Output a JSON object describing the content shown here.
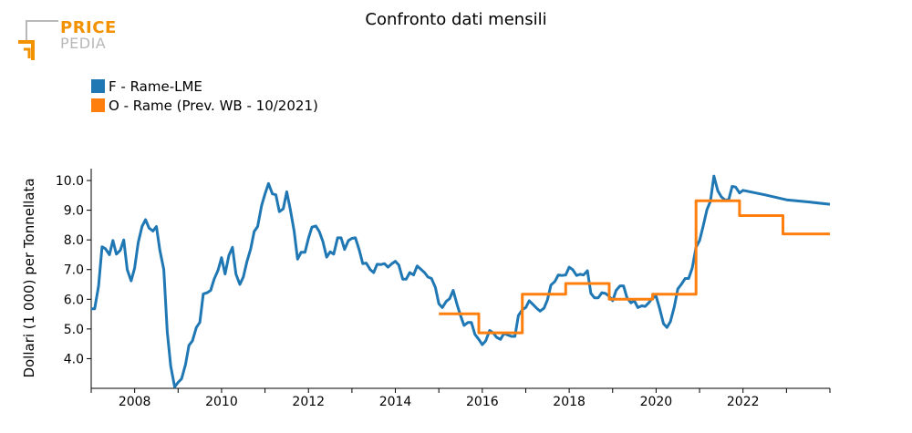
{
  "brand": {
    "price": "PRICE",
    "pedia": "PEDIA"
  },
  "chart_data": {
    "type": "line",
    "title": "Confronto dati mensili",
    "ylabel": "Dollari (1 000) per Tonnellata",
    "xlabel": "",
    "xlim": [
      2007.0,
      2024.0
    ],
    "ylim": [
      3.0,
      10.4
    ],
    "x_ticks": [
      "2008",
      "2010",
      "2012",
      "2014",
      "2016",
      "2018",
      "2020",
      "2022"
    ],
    "y_ticks": [
      "4.0",
      "5.0",
      "6.0",
      "7.0",
      "8.0",
      "9.0",
      "10.0"
    ],
    "legend_position": "top-left",
    "series": [
      {
        "name": "F - Rame-LME",
        "color": "#1f77b4",
        "style": "line",
        "points": [
          [
            2007.0,
            5.68
          ],
          [
            2007.08,
            5.68
          ],
          [
            2007.17,
            6.45
          ],
          [
            2007.25,
            7.77
          ],
          [
            2007.33,
            7.7
          ],
          [
            2007.42,
            7.5
          ],
          [
            2007.5,
            7.98
          ],
          [
            2007.58,
            7.52
          ],
          [
            2007.67,
            7.65
          ],
          [
            2007.75,
            8.0
          ],
          [
            2007.83,
            7.0
          ],
          [
            2007.92,
            6.62
          ],
          [
            2008.0,
            7.05
          ],
          [
            2008.08,
            7.9
          ],
          [
            2008.17,
            8.45
          ],
          [
            2008.25,
            8.68
          ],
          [
            2008.33,
            8.4
          ],
          [
            2008.42,
            8.3
          ],
          [
            2008.5,
            8.45
          ],
          [
            2008.58,
            7.65
          ],
          [
            2008.67,
            7.0
          ],
          [
            2008.75,
            4.9
          ],
          [
            2008.83,
            3.75
          ],
          [
            2008.92,
            3.05
          ],
          [
            2009.0,
            3.2
          ],
          [
            2009.08,
            3.32
          ],
          [
            2009.17,
            3.8
          ],
          [
            2009.25,
            4.45
          ],
          [
            2009.33,
            4.6
          ],
          [
            2009.42,
            5.05
          ],
          [
            2009.5,
            5.22
          ],
          [
            2009.58,
            6.18
          ],
          [
            2009.67,
            6.22
          ],
          [
            2009.75,
            6.3
          ],
          [
            2009.83,
            6.68
          ],
          [
            2009.92,
            6.98
          ],
          [
            2010.0,
            7.4
          ],
          [
            2010.08,
            6.85
          ],
          [
            2010.17,
            7.48
          ],
          [
            2010.25,
            7.75
          ],
          [
            2010.33,
            6.85
          ],
          [
            2010.42,
            6.5
          ],
          [
            2010.5,
            6.75
          ],
          [
            2010.58,
            7.25
          ],
          [
            2010.67,
            7.7
          ],
          [
            2010.75,
            8.28
          ],
          [
            2010.83,
            8.45
          ],
          [
            2010.92,
            9.15
          ],
          [
            2011.0,
            9.55
          ],
          [
            2011.08,
            9.9
          ],
          [
            2011.17,
            9.55
          ],
          [
            2011.25,
            9.52
          ],
          [
            2011.33,
            8.95
          ],
          [
            2011.42,
            9.05
          ],
          [
            2011.5,
            9.62
          ],
          [
            2011.58,
            9.05
          ],
          [
            2011.67,
            8.3
          ],
          [
            2011.75,
            7.35
          ],
          [
            2011.83,
            7.58
          ],
          [
            2011.92,
            7.58
          ],
          [
            2012.0,
            8.05
          ],
          [
            2012.08,
            8.43
          ],
          [
            2012.17,
            8.47
          ],
          [
            2012.25,
            8.28
          ],
          [
            2012.33,
            7.95
          ],
          [
            2012.42,
            7.42
          ],
          [
            2012.5,
            7.6
          ],
          [
            2012.58,
            7.52
          ],
          [
            2012.67,
            8.07
          ],
          [
            2012.75,
            8.07
          ],
          [
            2012.83,
            7.68
          ],
          [
            2012.92,
            7.98
          ],
          [
            2013.0,
            8.05
          ],
          [
            2013.08,
            8.07
          ],
          [
            2013.17,
            7.65
          ],
          [
            2013.25,
            7.2
          ],
          [
            2013.33,
            7.22
          ],
          [
            2013.42,
            7.0
          ],
          [
            2013.5,
            6.9
          ],
          [
            2013.58,
            7.18
          ],
          [
            2013.67,
            7.17
          ],
          [
            2013.75,
            7.2
          ],
          [
            2013.83,
            7.08
          ],
          [
            2013.92,
            7.2
          ],
          [
            2014.0,
            7.28
          ],
          [
            2014.08,
            7.15
          ],
          [
            2014.17,
            6.68
          ],
          [
            2014.25,
            6.68
          ],
          [
            2014.33,
            6.9
          ],
          [
            2014.42,
            6.82
          ],
          [
            2014.5,
            7.12
          ],
          [
            2014.58,
            7.02
          ],
          [
            2014.67,
            6.9
          ],
          [
            2014.75,
            6.75
          ],
          [
            2014.83,
            6.7
          ],
          [
            2014.92,
            6.4
          ],
          [
            2015.0,
            5.85
          ],
          [
            2015.08,
            5.72
          ],
          [
            2015.17,
            5.93
          ],
          [
            2015.25,
            6.02
          ],
          [
            2015.33,
            6.3
          ],
          [
            2015.42,
            5.82
          ],
          [
            2015.5,
            5.45
          ],
          [
            2015.58,
            5.12
          ],
          [
            2015.67,
            5.22
          ],
          [
            2015.75,
            5.22
          ],
          [
            2015.83,
            4.82
          ],
          [
            2015.92,
            4.65
          ],
          [
            2016.0,
            4.47
          ],
          [
            2016.08,
            4.6
          ],
          [
            2016.17,
            4.95
          ],
          [
            2016.25,
            4.87
          ],
          [
            2016.33,
            4.72
          ],
          [
            2016.42,
            4.65
          ],
          [
            2016.5,
            4.85
          ],
          [
            2016.58,
            4.8
          ],
          [
            2016.67,
            4.75
          ],
          [
            2016.75,
            4.75
          ],
          [
            2016.83,
            5.45
          ],
          [
            2016.92,
            5.65
          ],
          [
            2017.0,
            5.72
          ],
          [
            2017.08,
            5.95
          ],
          [
            2017.17,
            5.82
          ],
          [
            2017.25,
            5.7
          ],
          [
            2017.33,
            5.6
          ],
          [
            2017.42,
            5.7
          ],
          [
            2017.5,
            5.98
          ],
          [
            2017.58,
            6.48
          ],
          [
            2017.67,
            6.6
          ],
          [
            2017.75,
            6.82
          ],
          [
            2017.83,
            6.8
          ],
          [
            2017.92,
            6.82
          ],
          [
            2018.0,
            7.08
          ],
          [
            2018.08,
            7.0
          ],
          [
            2018.17,
            6.8
          ],
          [
            2018.25,
            6.84
          ],
          [
            2018.33,
            6.82
          ],
          [
            2018.42,
            6.96
          ],
          [
            2018.5,
            6.2
          ],
          [
            2018.58,
            6.05
          ],
          [
            2018.67,
            6.05
          ],
          [
            2018.75,
            6.22
          ],
          [
            2018.83,
            6.2
          ],
          [
            2018.92,
            6.1
          ],
          [
            2019.0,
            5.95
          ],
          [
            2019.08,
            6.3
          ],
          [
            2019.17,
            6.45
          ],
          [
            2019.25,
            6.45
          ],
          [
            2019.33,
            6.05
          ],
          [
            2019.42,
            5.88
          ],
          [
            2019.5,
            5.95
          ],
          [
            2019.58,
            5.72
          ],
          [
            2019.67,
            5.78
          ],
          [
            2019.75,
            5.76
          ],
          [
            2019.83,
            5.88
          ],
          [
            2019.92,
            6.05
          ],
          [
            2020.0,
            6.1
          ],
          [
            2020.08,
            5.7
          ],
          [
            2020.17,
            5.18
          ],
          [
            2020.25,
            5.05
          ],
          [
            2020.33,
            5.25
          ],
          [
            2020.42,
            5.75
          ],
          [
            2020.5,
            6.35
          ],
          [
            2020.58,
            6.5
          ],
          [
            2020.67,
            6.7
          ],
          [
            2020.75,
            6.7
          ],
          [
            2020.83,
            7.05
          ],
          [
            2020.92,
            7.75
          ],
          [
            2021.0,
            7.98
          ],
          [
            2021.08,
            8.45
          ],
          [
            2021.17,
            9.02
          ],
          [
            2021.25,
            9.3
          ],
          [
            2021.33,
            10.15
          ],
          [
            2021.42,
            9.65
          ],
          [
            2021.5,
            9.45
          ],
          [
            2021.58,
            9.35
          ],
          [
            2021.67,
            9.35
          ],
          [
            2021.75,
            9.8
          ],
          [
            2021.83,
            9.78
          ],
          [
            2021.92,
            9.58
          ],
          [
            2022.0,
            9.67
          ],
          [
            2022.5,
            9.52
          ],
          [
            2023.0,
            9.35
          ],
          [
            2023.5,
            9.28
          ],
          [
            2024.0,
            9.2
          ]
        ]
      },
      {
        "name": "O - Rame (Prev. WB - 10/2021)",
        "color": "#ff7f0e",
        "style": "step",
        "points": [
          [
            2015.0,
            5.51
          ],
          [
            2015.92,
            5.51
          ],
          [
            2015.92,
            4.87
          ],
          [
            2016.92,
            4.87
          ],
          [
            2016.92,
            6.17
          ],
          [
            2017.92,
            6.17
          ],
          [
            2017.92,
            6.53
          ],
          [
            2018.92,
            6.53
          ],
          [
            2018.92,
            6.0
          ],
          [
            2019.92,
            6.0
          ],
          [
            2019.92,
            6.17
          ],
          [
            2020.92,
            6.17
          ],
          [
            2020.92,
            9.32
          ],
          [
            2021.92,
            9.32
          ],
          [
            2021.92,
            8.82
          ],
          [
            2022.92,
            8.82
          ],
          [
            2022.92,
            8.2
          ],
          [
            2024.0,
            8.2
          ]
        ]
      }
    ]
  }
}
